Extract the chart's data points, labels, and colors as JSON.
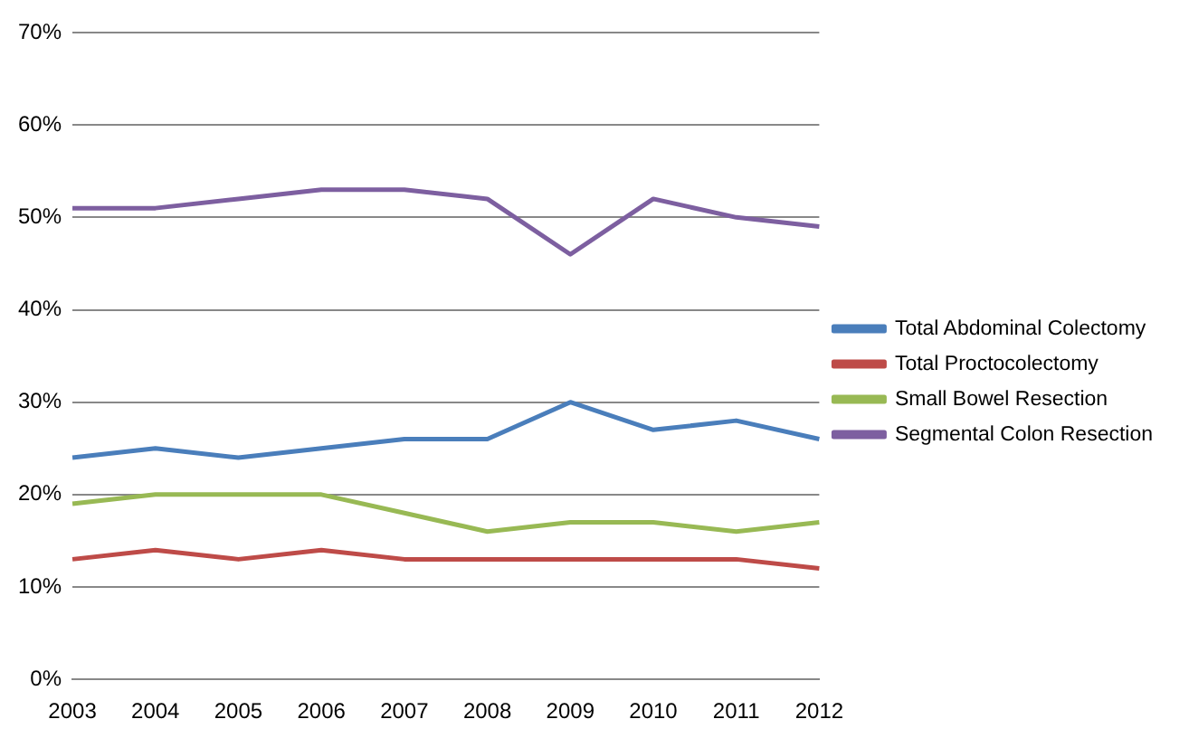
{
  "chart_data": {
    "type": "line",
    "categories": [
      "2003",
      "2004",
      "2005",
      "2006",
      "2007",
      "2008",
      "2009",
      "2010",
      "2011",
      "2012"
    ],
    "series": [
      {
        "name": "Total Abdominal Colectomy",
        "color": "#4a7ebb",
        "values": [
          24,
          25,
          24,
          25,
          26,
          26,
          30,
          27,
          28,
          26
        ]
      },
      {
        "name": "Total Proctocolectomy",
        "color": "#be4b48",
        "values": [
          13,
          14,
          13,
          14,
          13,
          13,
          13,
          13,
          13,
          12
        ]
      },
      {
        "name": "Small Bowel Resection",
        "color": "#98b954",
        "values": [
          19,
          20,
          20,
          20,
          18,
          16,
          17,
          17,
          16,
          17
        ]
      },
      {
        "name": "Segmental Colon Resection",
        "color": "#7d5fa0",
        "values": [
          51,
          51,
          52,
          53,
          53,
          52,
          46,
          52,
          50,
          49
        ]
      }
    ],
    "ylim": [
      0,
      70
    ],
    "yticks": [
      {
        "value": 0,
        "label": "0%"
      },
      {
        "value": 10,
        "label": "10%"
      },
      {
        "value": 20,
        "label": "20%"
      },
      {
        "value": 30,
        "label": "30%"
      },
      {
        "value": 40,
        "label": "40%"
      },
      {
        "value": 50,
        "label": "50%"
      },
      {
        "value": 60,
        "label": "60%"
      },
      {
        "value": 70,
        "label": "70%"
      }
    ],
    "grid": "y",
    "legend": "right",
    "marker": "none",
    "line_style": "solid"
  }
}
